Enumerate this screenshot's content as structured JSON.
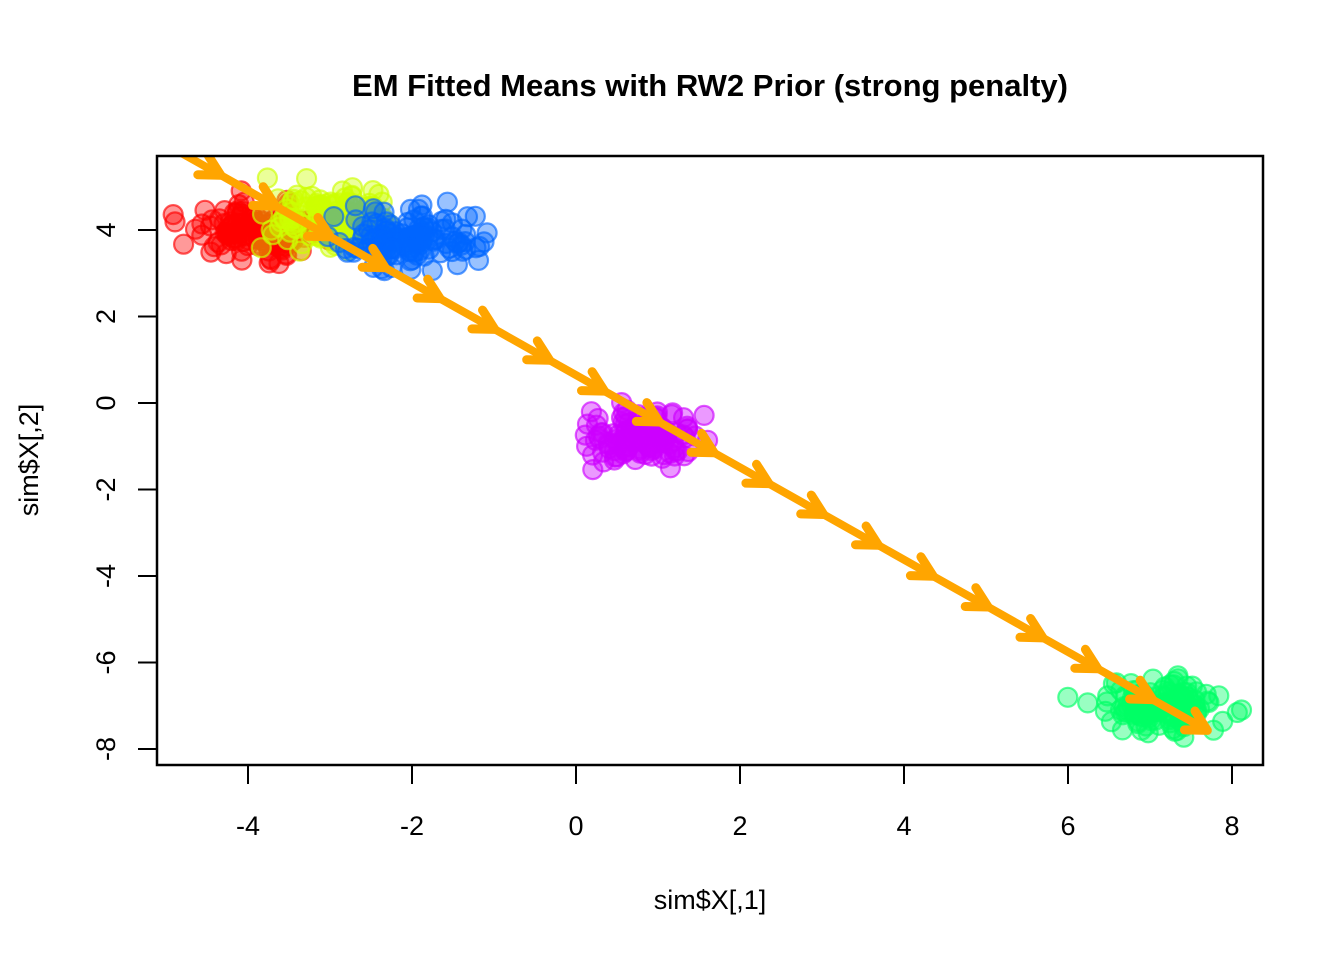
{
  "figure": {
    "title": "EM Fitted Means with RW2 Prior (strong penalty)",
    "x_axis_label": "sim$X[,1]",
    "y_axis_label": "sim$X[,2]"
  },
  "chart_data": {
    "type": "scatter",
    "title": "EM Fitted Means with RW2 Prior (strong penalty)",
    "xlabel": "sim$X[,1]",
    "ylabel": "sim$X[,2]",
    "xlim": [
      -5.1,
      8.4
    ],
    "ylim": [
      -8.4,
      5.7
    ],
    "x_ticks": [
      -4,
      -2,
      0,
      2,
      4,
      6,
      8
    ],
    "y_ticks": [
      4,
      2,
      0,
      -2,
      -4,
      -6,
      -8
    ],
    "grid": false,
    "legend": "none",
    "clusters": [
      {
        "name": "cluster-red",
        "color": "#FF0000",
        "center": [
          -3.85,
          4.0
        ],
        "sd": [
          0.42,
          0.3
        ],
        "n": 140
      },
      {
        "name": "cluster-yellow",
        "color": "#CCFF00",
        "center": [
          -3.0,
          4.25
        ],
        "sd": [
          0.33,
          0.33
        ],
        "n": 140
      },
      {
        "name": "cluster-blue",
        "color": "#0066FF",
        "center": [
          -2.05,
          3.75
        ],
        "sd": [
          0.4,
          0.3
        ],
        "n": 140
      },
      {
        "name": "cluster-magenta",
        "color": "#CC00FF",
        "center": [
          0.8,
          -0.75
        ],
        "sd": [
          0.33,
          0.3
        ],
        "n": 140
      },
      {
        "name": "cluster-green",
        "color": "#00FF66",
        "center": [
          7.1,
          -7.0
        ],
        "sd": [
          0.38,
          0.3
        ],
        "n": 140
      }
    ],
    "point_opacity": 0.4,
    "fitted_means_path": {
      "description": "sequence of EM fitted means connected by arrows",
      "color": "#FFA500",
      "start": [
        -5.0,
        5.98
      ],
      "end": [
        7.7,
        -7.57
      ],
      "n_means": 20,
      "n_arrows": 19
    }
  }
}
